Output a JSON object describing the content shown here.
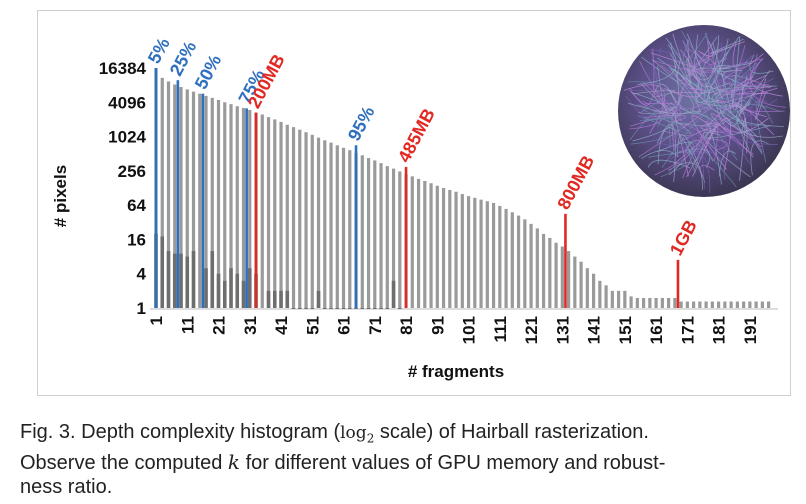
{
  "chart_data": {
    "type": "bar",
    "title": "",
    "xlabel": "# fragments",
    "ylabel": "# pixels",
    "yscale": "log2",
    "ylim": [
      1,
      16384
    ],
    "xlim": [
      1,
      200
    ],
    "x_ticks": [
      "1",
      "11",
      "21",
      "31",
      "41",
      "51",
      "61",
      "71",
      "81",
      "91",
      "101",
      "111",
      "121",
      "131",
      "141",
      "151",
      "161",
      "171",
      "181",
      "191"
    ],
    "y_ticks": [
      "16384",
      "4096",
      "1024",
      "256",
      "64",
      "16",
      "4",
      "1"
    ],
    "y_tick_values": [
      16384,
      4096,
      1024,
      256,
      64,
      16,
      4,
      1
    ],
    "series": [
      {
        "name": "",
        "x": [
          1,
          3,
          5,
          7,
          9,
          11,
          13,
          15,
          17,
          19,
          21,
          23,
          25,
          27,
          29,
          31,
          33,
          35,
          37,
          39,
          41,
          43,
          45,
          47,
          49,
          51,
          53,
          55,
          57,
          59,
          61,
          63,
          65,
          67,
          69,
          71,
          73,
          75,
          77,
          79,
          81,
          83,
          85,
          87,
          89,
          91,
          93,
          95,
          97,
          99,
          101,
          103,
          105,
          107,
          109,
          111,
          113,
          115,
          117,
          119,
          121,
          123,
          125,
          127,
          129,
          131,
          133,
          135,
          137,
          139,
          141,
          143,
          145,
          147,
          149,
          151,
          153,
          155,
          157,
          159,
          161,
          163,
          165,
          167,
          169,
          171,
          173,
          175,
          177,
          179,
          181,
          183,
          185,
          187,
          189,
          191,
          193,
          195,
          197
        ],
        "values": [
          16384,
          11000,
          9500,
          8400,
          7600,
          6900,
          6300,
          5800,
          5300,
          4900,
          4500,
          4100,
          3800,
          3500,
          3250,
          3000,
          2700,
          2500,
          2250,
          2050,
          1850,
          1650,
          1500,
          1350,
          1220,
          1100,
          980,
          880,
          800,
          720,
          650,
          590,
          530,
          480,
          430,
          390,
          350,
          310,
          280,
          250,
          225,
          205,
          185,
          170,
          155,
          140,
          128,
          118,
          110,
          100,
          92,
          86,
          80,
          75,
          70,
          62,
          55,
          48,
          42,
          36,
          30,
          25,
          20,
          17,
          14,
          12,
          10,
          8,
          6.5,
          5,
          4,
          3,
          2.5,
          2,
          2,
          2,
          1.6,
          1.5,
          1.5,
          1.5,
          1.5,
          1.5,
          1.5,
          1.5,
          1.3,
          1.3,
          1.3,
          1.3,
          1.3,
          1.3,
          1.3,
          1.3,
          1.3,
          1.3,
          1.3,
          1.3,
          1.3,
          1.3,
          1.3
        ]
      },
      {
        "name": "",
        "x": [
          1,
          3,
          5,
          7,
          9,
          11,
          13,
          17,
          19,
          21,
          23,
          25,
          27,
          29,
          31,
          33,
          37,
          39,
          41,
          43,
          45,
          47,
          49,
          51,
          53,
          55,
          57,
          59,
          61,
          63,
          65,
          67,
          69,
          71,
          73,
          75,
          77,
          79
        ],
        "values": [
          20,
          18,
          10,
          9,
          9,
          8,
          10,
          5,
          10,
          4,
          3,
          5,
          4,
          3,
          5,
          4,
          2,
          2,
          2,
          2,
          1,
          1,
          1,
          1,
          2,
          1,
          1,
          1,
          1,
          1,
          1,
          1,
          1,
          1,
          1,
          1,
          3,
          1
        ]
      }
    ],
    "markers": [
      {
        "x": 1,
        "value": 16384,
        "label": "5%",
        "color": "#2e6fbf"
      },
      {
        "x": 8,
        "value": 10000,
        "label": "25%",
        "color": "#2e6fbf"
      },
      {
        "x": 16,
        "value": 5800,
        "label": "50%",
        "color": "#2e6fbf"
      },
      {
        "x": 30,
        "value": 3200,
        "label": "75%",
        "color": "#2e6fbf"
      },
      {
        "x": 33,
        "value": 2700,
        "label": "200MB",
        "color": "#e22822"
      },
      {
        "x": 65,
        "value": 720,
        "label": "95%",
        "color": "#2e6fbf"
      },
      {
        "x": 81,
        "value": 300,
        "label": "485MB",
        "color": "#e22822"
      },
      {
        "x": 132,
        "value": 45,
        "label": "800MB",
        "color": "#e22822"
      },
      {
        "x": 168,
        "value": 7,
        "label": "1GB",
        "color": "#e22822"
      }
    ],
    "colors": {
      "bar": "#9a9a9a",
      "bar_shadow": "#7a7a7a",
      "low_series": "#6e6e6e",
      "blue": "#2e6fbf",
      "red": "#e22822"
    },
    "inset_image": "hairball-render"
  },
  "caption": {
    "prefix": "Fig. 3. Depth complexity histogram (",
    "math_log": "log",
    "math_sub": "2",
    "middle": " scale) of Hairball rasterization.",
    "line2_pre": "Observe the computed ",
    "math_k": "k",
    "line2_post": " for different values of GPU memory and robust-",
    "line3": "ness ratio."
  }
}
